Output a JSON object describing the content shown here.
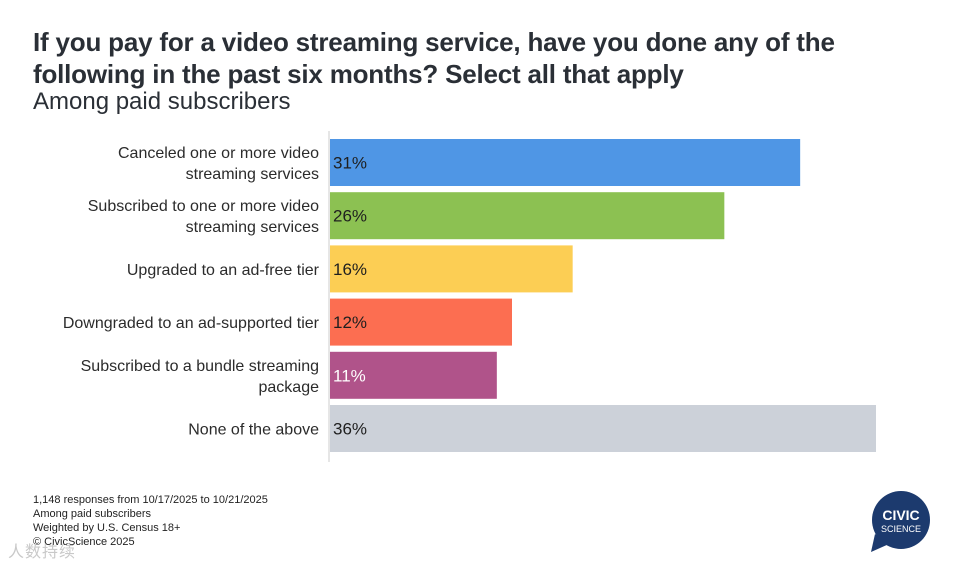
{
  "title": "If you pay for a video streaming service, have you done any of the following in the past six months? Select all that apply",
  "subtitle": "Among paid subscribers",
  "chart_data": {
    "type": "bar",
    "orientation": "horizontal",
    "categories": [
      [
        "Canceled one or more video",
        "streaming services"
      ],
      [
        "Subscribed to one or more video",
        "streaming services"
      ],
      [
        "Upgraded to an ad-free tier"
      ],
      [
        "Downgraded to an ad-supported tier"
      ],
      [
        "Subscribed to a bundle streaming",
        "package"
      ],
      [
        "None of the above"
      ]
    ],
    "values": [
      31,
      26,
      16,
      12,
      11,
      36
    ],
    "value_labels": [
      "31%",
      "26%",
      "16%",
      "12%",
      "11%",
      "36%"
    ],
    "colors": [
      "#4f96e5",
      "#8cc152",
      "#fcce54",
      "#fc6e51",
      "#b0538a",
      "#ccd1d9"
    ],
    "label_colors": [
      "#1f1f1f",
      "#1f1f1f",
      "#1f1f1f",
      "#1f1f1f",
      "#ffffff",
      "#1f1f1f"
    ],
    "xlim": [
      0,
      36
    ],
    "grid": false,
    "legend": "none"
  },
  "footer": {
    "line1": "1,148 responses from 10/17/2025 to 10/21/2025",
    "line2": "Among paid subscribers",
    "line3": "Weighted by U.S. Census 18+",
    "line4": "© CivicScience 2025"
  },
  "logo": {
    "line1": "CIVIC",
    "line2": "SCIENCE",
    "color": "#1c3a6e"
  },
  "watermark": "人数持续"
}
